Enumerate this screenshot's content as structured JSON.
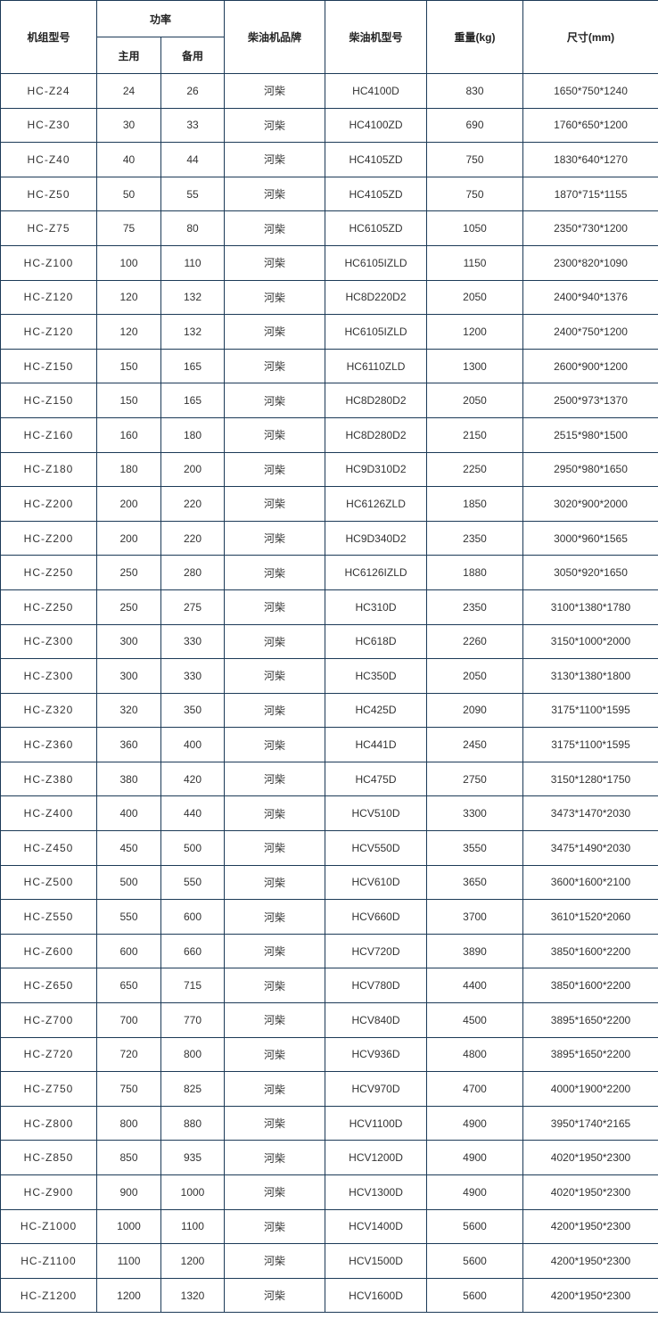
{
  "header": {
    "model": "机组型号",
    "power": "功率",
    "prime": "主用",
    "standby": "备用",
    "brand": "柴油机品牌",
    "engine": "柴油机型号",
    "weight": "重量(kg)",
    "size": "尺寸(mm)"
  },
  "rows": [
    [
      "HC-Z24",
      "24",
      "26",
      "河柴",
      "HC4100D",
      "830",
      "1650*750*1240"
    ],
    [
      "HC-Z30",
      "30",
      "33",
      "河柴",
      "HC4100ZD",
      "690",
      "1760*650*1200"
    ],
    [
      "HC-Z40",
      "40",
      "44",
      "河柴",
      "HC4105ZD",
      "750",
      "1830*640*1270"
    ],
    [
      "HC-Z50",
      "50",
      "55",
      "河柴",
      "HC4105ZD",
      "750",
      "1870*715*1155"
    ],
    [
      "HC-Z75",
      "75",
      "80",
      "河柴",
      "HC6105ZD",
      "1050",
      "2350*730*1200"
    ],
    [
      "HC-Z100",
      "100",
      "110",
      "河柴",
      "HC6105IZLD",
      "1150",
      "2300*820*1090"
    ],
    [
      "HC-Z120",
      "120",
      "132",
      "河柴",
      "HC8D220D2",
      "2050",
      "2400*940*1376"
    ],
    [
      "HC-Z120",
      "120",
      "132",
      "河柴",
      "HC6105IZLD",
      "1200",
      "2400*750*1200"
    ],
    [
      "HC-Z150",
      "150",
      "165",
      "河柴",
      "HC6110ZLD",
      "1300",
      "2600*900*1200"
    ],
    [
      "HC-Z150",
      "150",
      "165",
      "河柴",
      "HC8D280D2",
      "2050",
      "2500*973*1370"
    ],
    [
      "HC-Z160",
      "160",
      "180",
      "河柴",
      "HC8D280D2",
      "2150",
      "2515*980*1500"
    ],
    [
      "HC-Z180",
      "180",
      "200",
      "河柴",
      "HC9D310D2",
      "2250",
      "2950*980*1650"
    ],
    [
      "HC-Z200",
      "200",
      "220",
      "河柴",
      "HC6126ZLD",
      "1850",
      "3020*900*2000"
    ],
    [
      "HC-Z200",
      "200",
      "220",
      "河柴",
      "HC9D340D2",
      "2350",
      "3000*960*1565"
    ],
    [
      "HC-Z250",
      "250",
      "280",
      "河柴",
      "HC6126IZLD",
      "1880",
      "3050*920*1650"
    ],
    [
      "HC-Z250",
      "250",
      "275",
      "河柴",
      "HC310D",
      "2350",
      "3100*1380*1780"
    ],
    [
      "HC-Z300",
      "300",
      "330",
      "河柴",
      "HC618D",
      "2260",
      "3150*1000*2000"
    ],
    [
      "HC-Z300",
      "300",
      "330",
      "河柴",
      "HC350D",
      "2050",
      "3130*1380*1800"
    ],
    [
      "HC-Z320",
      "320",
      "350",
      "河柴",
      "HC425D",
      "2090",
      "3175*1100*1595"
    ],
    [
      "HC-Z360",
      "360",
      "400",
      "河柴",
      "HC441D",
      "2450",
      "3175*1100*1595"
    ],
    [
      "HC-Z380",
      "380",
      "420",
      "河柴",
      "HC475D",
      "2750",
      "3150*1280*1750"
    ],
    [
      "HC-Z400",
      "400",
      "440",
      "河柴",
      "HCV510D",
      "3300",
      "3473*1470*2030"
    ],
    [
      "HC-Z450",
      "450",
      "500",
      "河柴",
      "HCV550D",
      "3550",
      "3475*1490*2030"
    ],
    [
      "HC-Z500",
      "500",
      "550",
      "河柴",
      "HCV610D",
      "3650",
      "3600*1600*2100"
    ],
    [
      "HC-Z550",
      "550",
      "600",
      "河柴",
      "HCV660D",
      "3700",
      "3610*1520*2060"
    ],
    [
      "HC-Z600",
      "600",
      "660",
      "河柴",
      "HCV720D",
      "3890",
      "3850*1600*2200"
    ],
    [
      "HC-Z650",
      "650",
      "715",
      "河柴",
      "HCV780D",
      "4400",
      "3850*1600*2200"
    ],
    [
      "HC-Z700",
      "700",
      "770",
      "河柴",
      "HCV840D",
      "4500",
      "3895*1650*2200"
    ],
    [
      "HC-Z720",
      "720",
      "800",
      "河柴",
      "HCV936D",
      "4800",
      "3895*1650*2200"
    ],
    [
      "HC-Z750",
      "750",
      "825",
      "河柴",
      "HCV970D",
      "4700",
      "4000*1900*2200"
    ],
    [
      "HC-Z800",
      "800",
      "880",
      "河柴",
      "HCV1100D",
      "4900",
      "3950*1740*2165"
    ],
    [
      "HC-Z850",
      "850",
      "935",
      "河柴",
      "HCV1200D",
      "4900",
      "4020*1950*2300"
    ],
    [
      "HC-Z900",
      "900",
      "1000",
      "河柴",
      "HCV1300D",
      "4900",
      "4020*1950*2300"
    ],
    [
      "HC-Z1000",
      "1000",
      "1100",
      "河柴",
      "HCV1400D",
      "5600",
      "4200*1950*2300"
    ],
    [
      "HC-Z1100",
      "1100",
      "1200",
      "河柴",
      "HCV1500D",
      "5600",
      "4200*1950*2300"
    ],
    [
      "HC-Z1200",
      "1200",
      "1320",
      "河柴",
      "HCV1600D",
      "5600",
      "4200*1950*2300"
    ]
  ]
}
